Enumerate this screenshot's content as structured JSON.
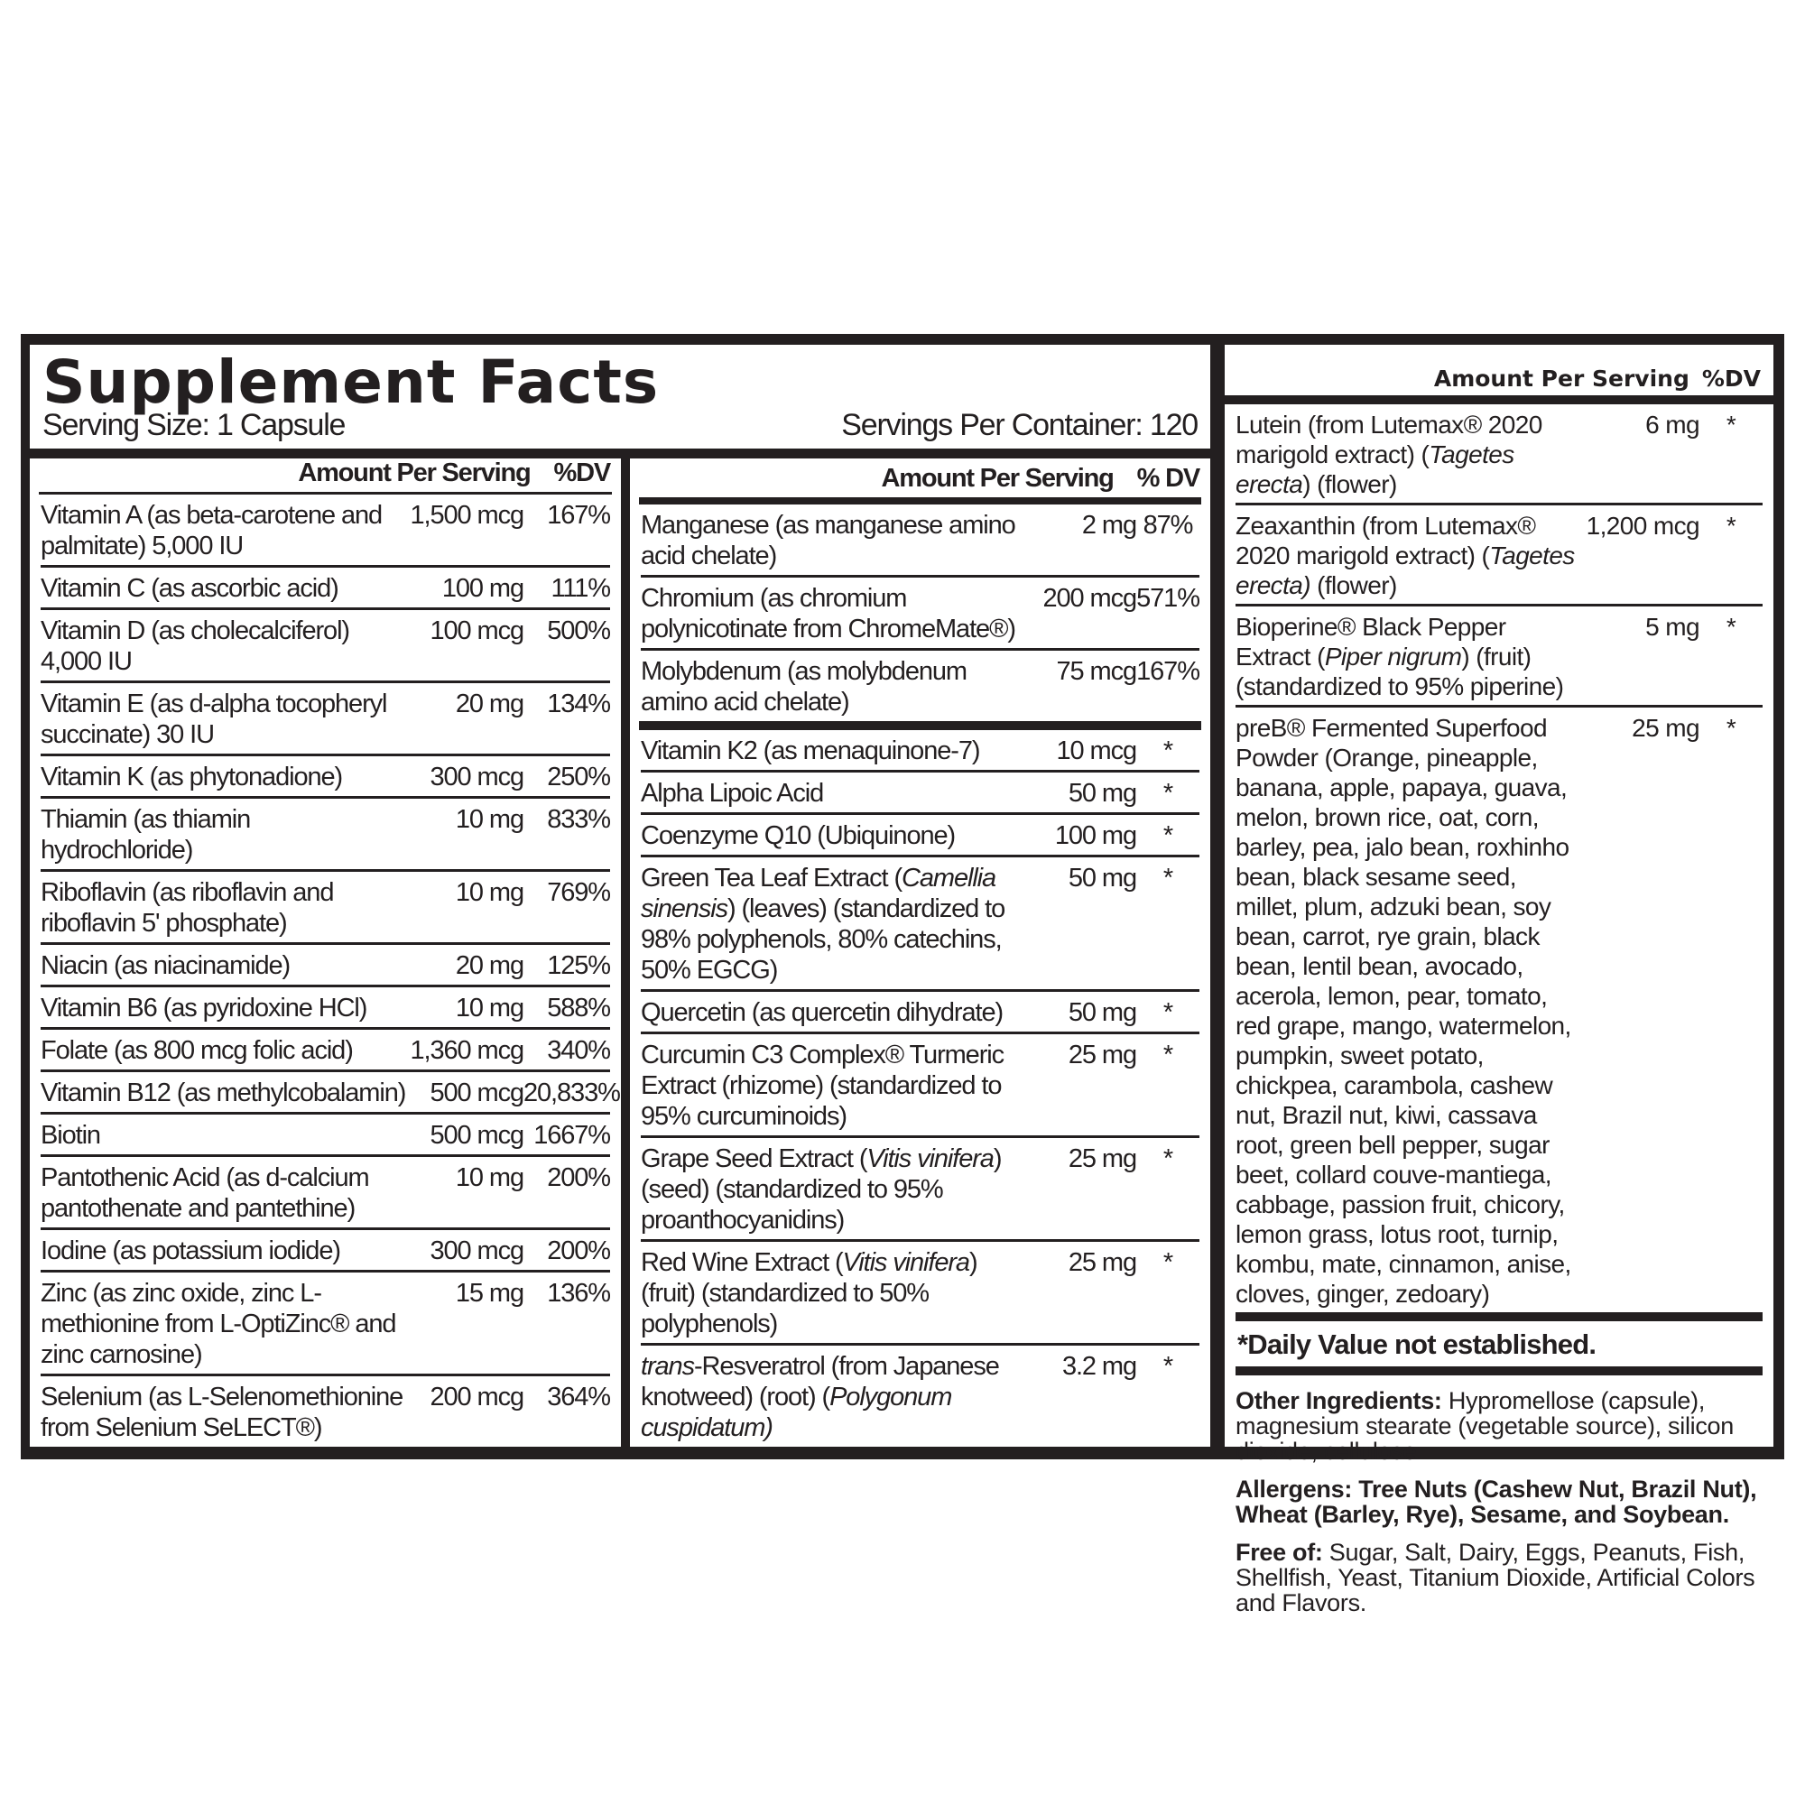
{
  "header": {
    "title": "Supplement Facts",
    "serving_size": "Serving Size: 1 Capsule",
    "servings_per_container": "Servings Per Container: 120"
  },
  "column1": {
    "amount_header": "Amount Per Serving",
    "dv_header": "%DV",
    "rows": [
      {
        "name": [
          [
            "Vitamin A (as beta-carotene and palmitate) 5,000 IU",
            false
          ]
        ],
        "amount": "1,500 mcg",
        "dv": "167%"
      },
      {
        "name": [
          [
            "Vitamin C (as ascorbic acid)",
            false
          ]
        ],
        "amount": "100 mg",
        "dv": "111%"
      },
      {
        "name": [
          [
            "Vitamin D (as cholecalciferol) 4,000 IU",
            false
          ]
        ],
        "amount": "100 mcg",
        "dv": "500%"
      },
      {
        "name": [
          [
            "Vitamin E (as d-alpha tocopheryl succinate) 30 IU",
            false
          ]
        ],
        "amount": "20 mg",
        "dv": "134%"
      },
      {
        "name": [
          [
            "Vitamin K (as phytonadione)",
            false
          ]
        ],
        "amount": "300 mcg",
        "dv": "250%"
      },
      {
        "name": [
          [
            "Thiamin (as thiamin hydrochloride)",
            false
          ]
        ],
        "amount": "10 mg",
        "dv": "833%"
      },
      {
        "name": [
          [
            "Riboflavin (as riboflavin and riboflavin 5' phosphate)",
            false
          ]
        ],
        "amount": "10 mg",
        "dv": "769%"
      },
      {
        "name": [
          [
            "Niacin (as niacinamide)",
            false
          ]
        ],
        "amount": "20 mg",
        "dv": "125%"
      },
      {
        "name": [
          [
            "Vitamin B6 (as pyridoxine HCl)",
            false
          ]
        ],
        "amount": "10 mg",
        "dv": "588%"
      },
      {
        "name": [
          [
            "Folate (as 800 mcg folic acid)",
            false
          ]
        ],
        "amount": "1,360 mcg",
        "dv": "340%"
      },
      {
        "name": [
          [
            "Vitamin B12 (as methylcobalamin)",
            false
          ]
        ],
        "amount": "500 mcg",
        "dv": "20,833%"
      },
      {
        "name": [
          [
            "Biotin",
            false
          ]
        ],
        "amount": "500 mcg",
        "dv": "1667%"
      },
      {
        "name": [
          [
            "Pantothenic Acid (as d-calcium pantothenate and pantethine)",
            false
          ]
        ],
        "amount": "10 mg",
        "dv": "200%"
      },
      {
        "name": [
          [
            "Iodine (as potassium iodide)",
            false
          ]
        ],
        "amount": "300 mcg",
        "dv": "200%"
      },
      {
        "name": [
          [
            "Zinc (as zinc oxide, zinc L-methionine from L-OptiZinc® and zinc carnosine)",
            false
          ]
        ],
        "amount": "15 mg",
        "dv": "136%"
      },
      {
        "name": [
          [
            "Selenium (as L-Selenomethionine from Selenium SeLECT®)",
            false
          ]
        ],
        "amount": "200 mcg",
        "dv": "364%"
      }
    ]
  },
  "column2": {
    "amount_header": "Amount Per Serving",
    "dv_header": "% DV",
    "rows": [
      {
        "name": [
          [
            "Manganese (as manganese amino acid chelate)",
            false
          ]
        ],
        "amount": "2 mg",
        "dv": "87%"
      },
      {
        "name": [
          [
            "Chromium (as chromium polynicotinate from ChromeMate®)",
            false
          ]
        ],
        "amount": "200 mcg",
        "dv": "571%"
      },
      {
        "name": [
          [
            "Molybdenum (as molybdenum amino acid chelate)",
            false
          ]
        ],
        "amount": "75 mcg",
        "dv": "167%",
        "thick_after": true
      },
      {
        "name": [
          [
            "Vitamin K2 (as menaquinone-7)",
            false
          ]
        ],
        "amount": "10 mcg",
        "dv": "*"
      },
      {
        "name": [
          [
            "Alpha Lipoic Acid",
            false
          ]
        ],
        "amount": "50 mg",
        "dv": "*"
      },
      {
        "name": [
          [
            "Coenzyme Q10 (Ubiquinone)",
            false
          ]
        ],
        "amount": "100 mg",
        "dv": "*"
      },
      {
        "name": [
          [
            "Green Tea Leaf Extract (",
            false
          ],
          [
            "Camellia sinensis",
            true
          ],
          [
            ") (leaves) (standardized to 98% polyphenols, 80% catechins, 50% EGCG)",
            false
          ]
        ],
        "amount": "50 mg",
        "dv": "*"
      },
      {
        "name": [
          [
            "Quercetin (as quercetin dihydrate)",
            false
          ]
        ],
        "amount": "50 mg",
        "dv": "*"
      },
      {
        "name": [
          [
            "Curcumin C3 Complex® Turmeric Extract (rhizome) (standardized to 95% curcuminoids)",
            false
          ]
        ],
        "amount": "25 mg",
        "dv": "*"
      },
      {
        "name": [
          [
            "Grape Seed Extract (",
            false
          ],
          [
            "Vitis vinifera",
            true
          ],
          [
            ") (seed) (standardized to 95% proanthocyanidins)",
            false
          ]
        ],
        "amount": "25 mg",
        "dv": "*"
      },
      {
        "name": [
          [
            "Red Wine Extract (",
            false
          ],
          [
            "Vitis vinifera",
            true
          ],
          [
            ") (fruit) (standardized to 50% polyphenols)",
            false
          ]
        ],
        "amount": "25 mg",
        "dv": "*"
      },
      {
        "name": [
          [
            "trans",
            true
          ],
          [
            "-Resveratrol (from Japanese knotweed) (root) (",
            false
          ],
          [
            "Polygonum cuspidatum)",
            true
          ]
        ],
        "amount": "3.2 mg",
        "dv": "*"
      }
    ]
  },
  "column3": {
    "amount_header": "Amount Per Serving",
    "dv_header": "%DV",
    "rows": [
      {
        "name": [
          [
            "Lutein (from Lutemax® 2020 marigold extract) (",
            false
          ],
          [
            "Tagetes erecta",
            true
          ],
          [
            ") (flower)",
            false
          ]
        ],
        "amount": "6 mg",
        "dv": "*"
      },
      {
        "name": [
          [
            "Zeaxanthin (from Lutemax® 2020 marigold extract) (",
            false
          ],
          [
            "Tagetes erecta)",
            true
          ],
          [
            " (flower)",
            false
          ]
        ],
        "amount": "1,200 mcg",
        "dv": "*"
      },
      {
        "name": [
          [
            "Bioperine® Black Pepper Extract (",
            false
          ],
          [
            "Piper nigrum",
            true
          ],
          [
            ") (fruit) (standardized to 95% piperine)",
            false
          ]
        ],
        "amount": "5 mg",
        "dv": "*"
      },
      {
        "name": [
          [
            "preB® Fermented Superfood Powder (Orange, pineapple, banana, apple, papaya, guava, melon, brown rice, oat, corn, barley, pea, jalo bean, roxhinho bean, black sesame seed, millet, plum, adzuki bean, soy bean, carrot, rye grain, black bean, lentil bean, avocado, acerola, lemon, pear, tomato, red grape, mango, watermelon, pumpkin, sweet potato, chickpea, carambola, cashew nut, Brazil nut, kiwi, cassava root, green bell pepper, sugar beet, collard couve-mantiega, cabbage, passion fruit, chicory, lemon grass, lotus root, turnip, kombu, mate, cinnamon, anise, cloves, ginger, zedoary)",
            false
          ]
        ],
        "amount": "25 mg",
        "dv": "*"
      }
    ],
    "dv_note": "*Daily Value not established.",
    "other_label": "Other Ingredients:",
    "other_text": " Hypromellose (capsule), magnesium stearate (vegetable source), silicon dioxide, cellulose.",
    "allergens_label": "Allergens:",
    "allergens_text": " Tree Nuts (Cashew Nut, Brazil Nut), Wheat (Barley, Rye), Sesame, and Soybean.",
    "free_label": "Free of:",
    "free_text": " Sugar, Salt, Dairy, Eggs, Peanuts, Fish, Shellfish, Yeast, Titanium Dioxide, Artificial Colors and Flavors."
  },
  "colors": {
    "ink": "#231f20",
    "background": "#ffffff"
  }
}
